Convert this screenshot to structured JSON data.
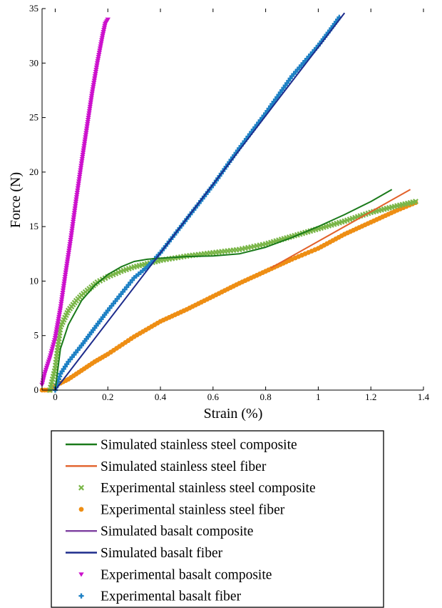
{
  "chart_data": {
    "type": "line",
    "title": "",
    "xlabel": "Strain (%)",
    "ylabel": "Force (N)",
    "xlim": [
      -0.05,
      1.4
    ],
    "ylim": [
      0,
      35
    ],
    "xticks": [
      0,
      0.2,
      0.4,
      0.6,
      0.8,
      1,
      1.2,
      1.4
    ],
    "xtick_labels": [
      "0",
      "0.2",
      "0.4",
      "0.6",
      "0.8",
      "1",
      "1.2",
      "1.4"
    ],
    "yticks": [
      0,
      5,
      10,
      15,
      20,
      25,
      30,
      35
    ],
    "ytick_labels": [
      "0",
      "5",
      "10",
      "15",
      "20",
      "25",
      "30",
      "35"
    ],
    "grid": false,
    "legend_position": "bottom",
    "series": [
      {
        "name": "Simulated stainless steel composite",
        "kind": "line",
        "color": "#1a7a1a",
        "x": [
          0,
          0.02,
          0.05,
          0.1,
          0.15,
          0.2,
          0.25,
          0.3,
          0.35,
          0.4,
          0.5,
          0.6,
          0.7,
          0.8,
          0.9,
          1.0,
          1.1,
          1.2,
          1.28
        ],
        "y": [
          0,
          3.8,
          6.0,
          8.2,
          9.6,
          10.6,
          11.3,
          11.8,
          12.0,
          12.1,
          12.25,
          12.3,
          12.5,
          13.1,
          14.0,
          15.0,
          16.1,
          17.3,
          18.4
        ]
      },
      {
        "name": "Simulated stainless steel fiber",
        "kind": "line",
        "color": "#e2612a",
        "x": [
          0.82,
          1.35
        ],
        "y": [
          11.2,
          18.4
        ]
      },
      {
        "name": "Experimental stainless steel composite",
        "kind": "marker",
        "marker": "x",
        "color": "#7ab648",
        "x": [
          -0.02,
          0.0,
          0.02,
          0.05,
          0.08,
          0.1,
          0.13,
          0.16,
          0.2,
          0.25,
          0.3,
          0.35,
          0.4,
          0.5,
          0.6,
          0.7,
          0.8,
          0.9,
          1.0,
          1.1,
          1.2,
          1.3,
          1.37
        ],
        "y": [
          0,
          2.0,
          5.8,
          7.3,
          8.2,
          8.7,
          9.3,
          9.9,
          10.4,
          10.9,
          11.3,
          11.6,
          11.9,
          12.3,
          12.6,
          12.9,
          13.4,
          14.1,
          14.8,
          15.5,
          16.3,
          16.9,
          17.3
        ]
      },
      {
        "name": "Experimental stainless steel fiber",
        "kind": "marker",
        "marker": "dot",
        "color": "#ee8e14",
        "x": [
          -0.05,
          -0.02,
          0.0,
          0.05,
          0.1,
          0.15,
          0.2,
          0.3,
          0.4,
          0.5,
          0.6,
          0.7,
          0.8,
          0.9,
          1.0,
          1.1,
          1.2,
          1.3,
          1.37
        ],
        "y": [
          0,
          0,
          0.4,
          1.0,
          1.8,
          2.6,
          3.3,
          4.9,
          6.3,
          7.4,
          8.6,
          9.8,
          10.9,
          12.0,
          13.0,
          14.3,
          15.4,
          16.5,
          17.2
        ]
      },
      {
        "name": "Simulated basalt composite",
        "kind": "line",
        "color": "#7d3fa0",
        "x": [],
        "y": []
      },
      {
        "name": "Simulated basalt fiber",
        "kind": "line",
        "color": "#1d2c8c",
        "x": [
          0,
          1.1
        ],
        "y": [
          0,
          34.6
        ]
      },
      {
        "name": "Experimental basalt composite",
        "kind": "marker",
        "marker": "tri",
        "color": "#cc11cc",
        "x": [
          -0.05,
          -0.04,
          -0.02,
          0.0,
          0.02,
          0.04,
          0.06,
          0.08,
          0.1,
          0.12,
          0.14,
          0.16,
          0.18,
          0.19,
          0.2
        ],
        "y": [
          0.5,
          1.5,
          3.0,
          4.8,
          7.5,
          10.8,
          14.0,
          17.5,
          20.8,
          24.0,
          27.2,
          30.0,
          32.5,
          33.6,
          34.0
        ]
      },
      {
        "name": "Experimental basalt fiber",
        "kind": "marker",
        "marker": "plus",
        "color": "#1d80c4",
        "x": [
          0.0,
          0.02,
          0.05,
          0.1,
          0.15,
          0.2,
          0.25,
          0.3,
          0.35,
          0.4,
          0.5,
          0.6,
          0.7,
          0.8,
          0.9,
          1.0,
          1.05,
          1.08
        ],
        "y": [
          0,
          1.5,
          2.6,
          4.1,
          5.7,
          7.3,
          8.8,
          10.3,
          11.3,
          12.6,
          15.7,
          18.8,
          22.2,
          25.4,
          28.8,
          31.6,
          33.2,
          34.2
        ]
      }
    ]
  },
  "legend": {
    "items": [
      {
        "label": "Simulated stainless steel composite",
        "symbol": "line",
        "color": "#1a7a1a"
      },
      {
        "label": "Simulated stainless steel fiber",
        "symbol": "line",
        "color": "#e2612a"
      },
      {
        "label": "Experimental stainless steel composite",
        "symbol": "x",
        "color": "#7ab648"
      },
      {
        "label": "Experimental stainless steel fiber",
        "symbol": "dot",
        "color": "#ee8e14"
      },
      {
        "label": "Simulated basalt composite",
        "symbol": "line",
        "color": "#7d3fa0"
      },
      {
        "label": "Simulated basalt fiber",
        "symbol": "line",
        "color": "#1d2c8c"
      },
      {
        "label": "Experimental basalt composite",
        "symbol": "tri",
        "color": "#cc11cc"
      },
      {
        "label": "Experimental basalt fiber",
        "symbol": "plus",
        "color": "#1d80c4"
      }
    ]
  }
}
